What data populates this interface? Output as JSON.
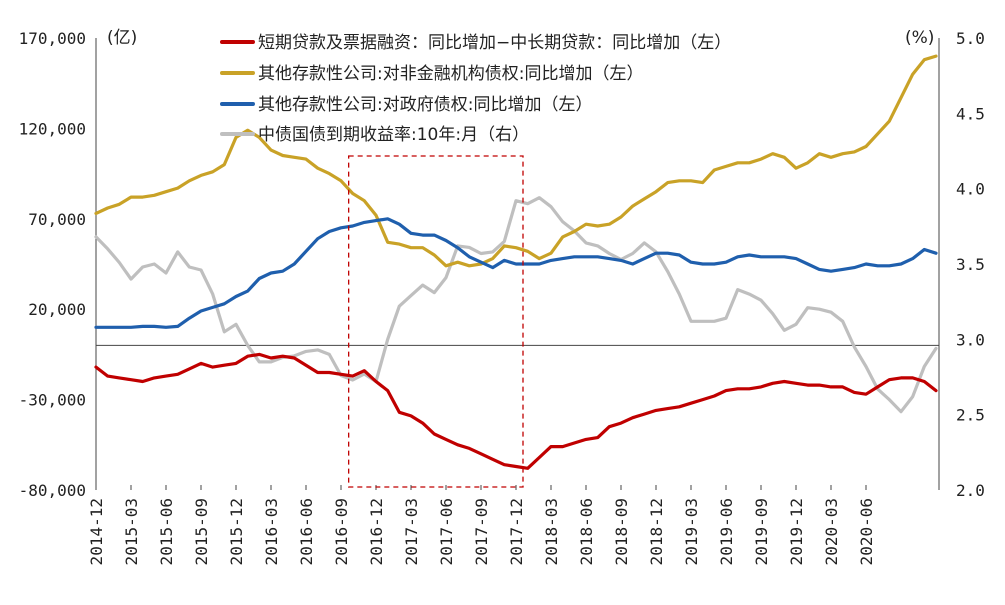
{
  "chart_data": {
    "type": "line",
    "left_axis": {
      "unit": "(亿)",
      "ticks": [
        "170,000",
        "120,000",
        "70,000",
        "20,000",
        "-30,000",
        "-80,000"
      ],
      "tick_values": [
        170000,
        120000,
        70000,
        20000,
        -30000,
        -80000
      ],
      "range": [
        -80000,
        170000
      ]
    },
    "right_axis": {
      "unit": "(%)",
      "ticks": [
        "5.0",
        "4.5",
        "4.0",
        "3.5",
        "3.0",
        "2.5",
        "2.0"
      ],
      "tick_values": [
        5.0,
        4.5,
        4.0,
        3.5,
        3.0,
        2.5,
        2.0
      ],
      "range": [
        2.0,
        5.0
      ]
    },
    "x_ticks": [
      "2014-12",
      "2015-03",
      "2015-06",
      "2015-09",
      "2015-12",
      "2016-03",
      "2016-06",
      "2016-09",
      "2016-12",
      "2017-03",
      "2017-06",
      "2017-09",
      "2017-12",
      "2018-03",
      "2018-06",
      "2018-09",
      "2018-12",
      "2019-03",
      "2019-06",
      "2019-09",
      "2019-12",
      "2020-03",
      "2020-06"
    ],
    "series": [
      {
        "name": "短期贷款及票据融资:同比增加-中长期贷款:同比增加(左)",
        "label": "短期贷款及票据融资：同比增加−中长期贷款：同比增加（左）",
        "axis": "left",
        "color": "#c00000",
        "values": [
          -12000,
          -17000,
          -18000,
          -19000,
          -20000,
          -18000,
          -17000,
          -16000,
          -13000,
          -10000,
          -12000,
          -11000,
          -10000,
          -6000,
          -5000,
          -7000,
          -6000,
          -7000,
          -11000,
          -15000,
          -15000,
          -16000,
          -17000,
          -14000,
          -20000,
          -25000,
          -37000,
          -39000,
          -43000,
          -49000,
          -52000,
          -55000,
          -57000,
          -60000,
          -63000,
          -66000,
          -67000,
          -68000,
          -62000,
          -56000,
          -56000,
          -54000,
          -52000,
          -51000,
          -45000,
          -43000,
          -40000,
          -38000,
          -36000,
          -35000,
          -34000,
          -32000,
          -30000,
          -28000,
          -25000,
          -24000,
          -24000,
          -23000,
          -21000,
          -20000,
          -21000,
          -22000,
          -22000,
          -23000,
          -23000,
          -26000,
          -27000,
          -23000,
          -19000,
          -18000,
          -18000,
          -20000,
          -25000
        ]
      },
      {
        "name": "其他存款性公司:对非金融机构债权:同比增加(左)",
        "label": "其他存款性公司:对非金融机构债权:同比增加（左）",
        "axis": "left",
        "color": "#c9a227",
        "values": [
          73000,
          76000,
          78000,
          82000,
          82000,
          83000,
          85000,
          87000,
          91000,
          94000,
          96000,
          100000,
          115000,
          119000,
          115000,
          108000,
          105000,
          104000,
          103000,
          98000,
          95000,
          91000,
          84000,
          80000,
          72000,
          57000,
          56000,
          54000,
          54000,
          50000,
          44000,
          46000,
          44000,
          45000,
          48000,
          55000,
          54000,
          52000,
          48000,
          51000,
          60000,
          63000,
          67000,
          66000,
          67000,
          71000,
          77000,
          81000,
          85000,
          90000,
          91000,
          91000,
          90000,
          97000,
          99000,
          101000,
          101000,
          103000,
          106000,
          104000,
          98000,
          101000,
          106000,
          104000,
          106000,
          107000,
          110000,
          117000,
          124000,
          137000,
          150000,
          158000,
          160000
        ]
      },
      {
        "name": "其他存款性公司:对政府债权:同比增加(左)",
        "label": "其他存款性公司:对政府债权:同比增加（左）",
        "axis": "left",
        "color": "#1f5fad",
        "values": [
          10000,
          10000,
          10000,
          10000,
          10500,
          10500,
          10000,
          10500,
          15000,
          19000,
          21000,
          23000,
          27000,
          30000,
          37000,
          40000,
          41000,
          45000,
          52000,
          59000,
          63000,
          65000,
          66000,
          68000,
          69000,
          70000,
          67000,
          62000,
          61000,
          61000,
          58000,
          54000,
          49000,
          46000,
          43000,
          47000,
          45000,
          45000,
          45000,
          47000,
          48000,
          49000,
          49000,
          49000,
          48000,
          47000,
          45000,
          48000,
          51000,
          51000,
          50000,
          46000,
          45000,
          45000,
          46000,
          49000,
          50000,
          49000,
          49000,
          49000,
          48000,
          45000,
          42000,
          41000,
          42000,
          43000,
          45000,
          44000,
          44000,
          45000,
          48000,
          53000,
          51000
        ]
      },
      {
        "name": "中债国债到期收益率:10年:月(右)",
        "label": "中债国债到期收益率:10年:月（右）",
        "axis": "right",
        "color": "#bfbfbf",
        "values": [
          3.68,
          3.6,
          3.51,
          3.4,
          3.48,
          3.5,
          3.44,
          3.58,
          3.48,
          3.46,
          3.3,
          3.05,
          3.1,
          2.96,
          2.85,
          2.85,
          2.88,
          2.89,
          2.92,
          2.93,
          2.9,
          2.76,
          2.73,
          2.77,
          2.72,
          3.0,
          3.22,
          3.29,
          3.36,
          3.31,
          3.41,
          3.62,
          3.61,
          3.57,
          3.58,
          3.65,
          3.92,
          3.9,
          3.94,
          3.88,
          3.78,
          3.72,
          3.64,
          3.62,
          3.57,
          3.53,
          3.57,
          3.64,
          3.58,
          3.45,
          3.3,
          3.12,
          3.12,
          3.12,
          3.14,
          3.33,
          3.3,
          3.26,
          3.17,
          3.06,
          3.1,
          3.21,
          3.2,
          3.18,
          3.12,
          2.95,
          2.82,
          2.67,
          2.6,
          2.52,
          2.62,
          2.82,
          2.94
        ]
      }
    ],
    "highlight_box": {
      "from": "2016-10",
      "to": "2017-12",
      "style": "red dashed"
    }
  }
}
